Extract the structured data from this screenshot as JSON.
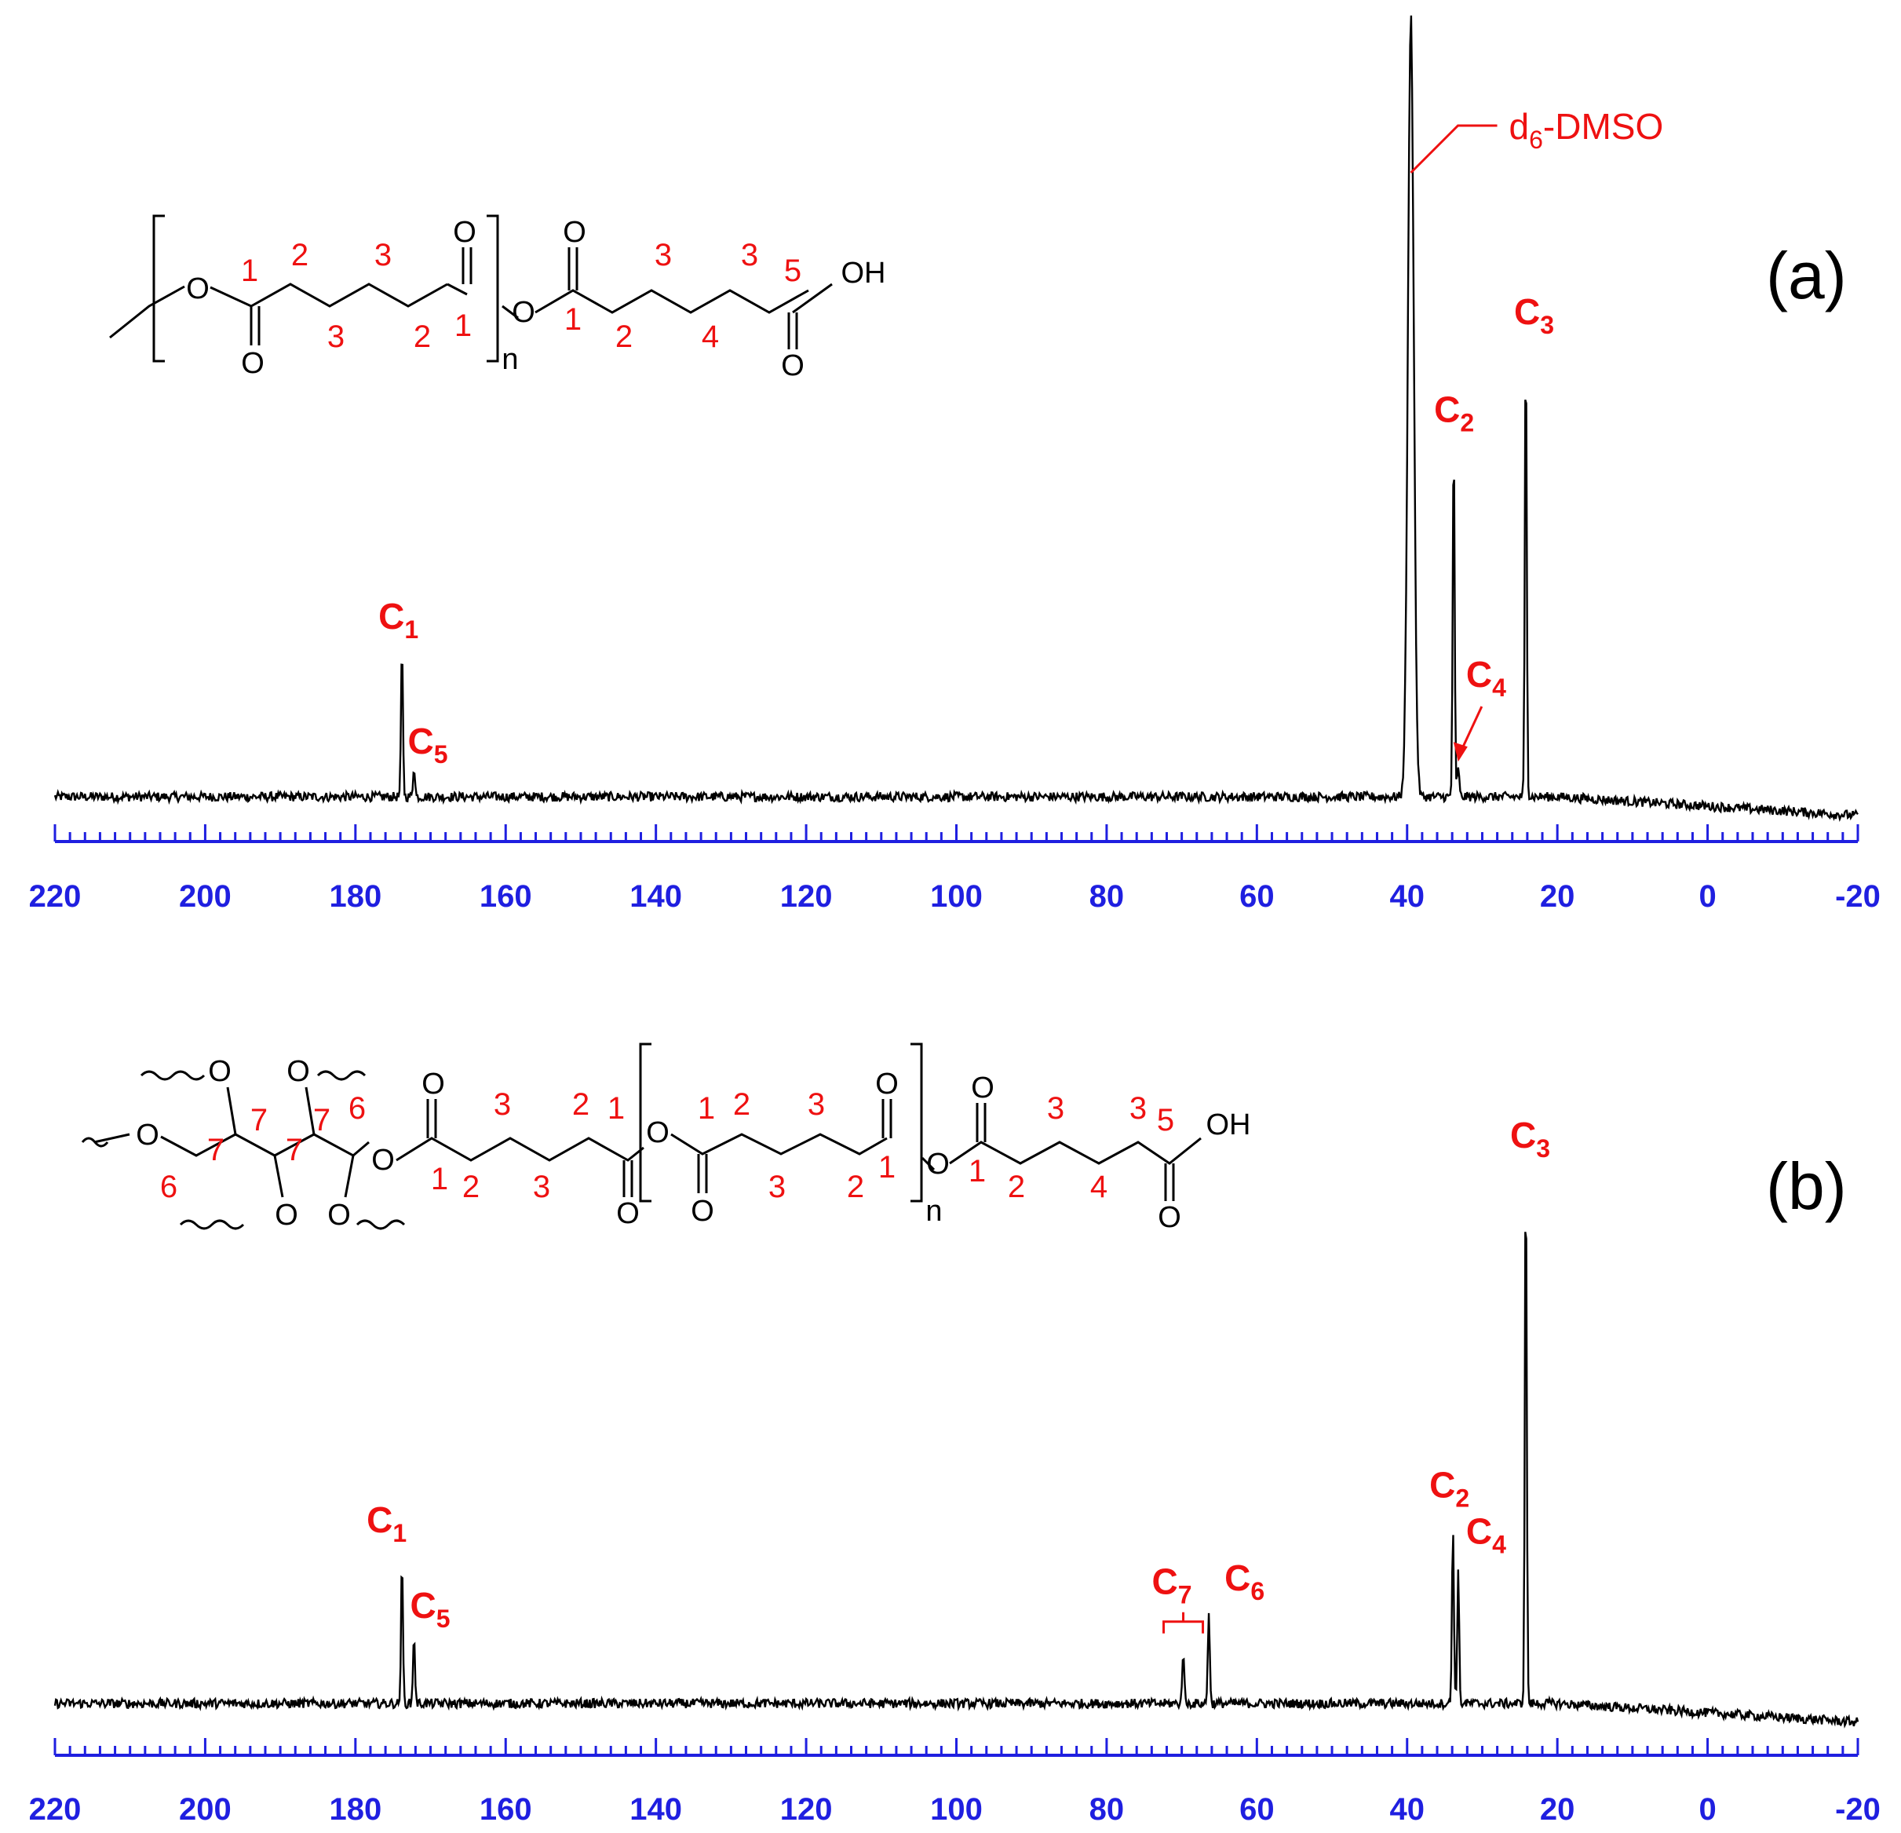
{
  "colors": {
    "axis": "#1f1fe0",
    "spectrum": "#000000",
    "annotation": "#ee1111"
  },
  "chart_data": [
    {
      "type": "line",
      "panel": "(a)",
      "xlim": [
        220,
        -20
      ],
      "x_reversed": true,
      "ticks": [
        220,
        200,
        180,
        160,
        140,
        120,
        100,
        80,
        60,
        40,
        20,
        0,
        -20
      ],
      "peaks": [
        {
          "label": "C",
          "sub": "1",
          "x": 173.8,
          "height": 0.19
        },
        {
          "label": "C",
          "sub": "5",
          "x": 172.2,
          "height": 0.04
        },
        {
          "label": "d",
          "sub": "6",
          "suffix": "-DMSO",
          "x": 39.5,
          "height": 1.0
        },
        {
          "label": "C",
          "sub": "2",
          "x": 33.8,
          "height": 0.46
        },
        {
          "label": "C",
          "sub": "4",
          "x": 33.2,
          "height": 0.04
        },
        {
          "label": "C",
          "sub": "3",
          "x": 24.2,
          "height": 0.58
        }
      ],
      "structure": {
        "atoms": {
          "o_carbonyl": "O",
          "o_ester": "O",
          "oh": "OH",
          "repeat": "n"
        },
        "numbers": [
          "1",
          "2",
          "3",
          "3",
          "2",
          "1",
          "1",
          "2",
          "3",
          "4",
          "3",
          "5"
        ]
      }
    },
    {
      "type": "line",
      "panel": "(b)",
      "xlim": [
        220,
        -20
      ],
      "x_reversed": true,
      "ticks": [
        220,
        200,
        180,
        160,
        140,
        120,
        100,
        80,
        60,
        40,
        20,
        0,
        -20
      ],
      "peaks": [
        {
          "label": "C",
          "sub": "1",
          "x": 173.8,
          "height": 0.18
        },
        {
          "label": "C",
          "sub": "5",
          "x": 172.2,
          "height": 0.09
        },
        {
          "label": "C",
          "sub": "7",
          "x": 69.8,
          "height": 0.07
        },
        {
          "label": "C",
          "sub": "6",
          "x": 66.4,
          "height": 0.12
        },
        {
          "label": "C",
          "sub": "2",
          "x": 33.9,
          "height": 0.23
        },
        {
          "label": "C",
          "sub": "4",
          "x": 33.2,
          "height": 0.17
        },
        {
          "label": "C",
          "sub": "3",
          "x": 24.2,
          "height": 0.69
        }
      ],
      "structure": {
        "atoms": {
          "o_carbonyl": "O",
          "o_ester": "O",
          "oh": "OH",
          "repeat": "n"
        },
        "numbers": [
          "6",
          "7",
          "7",
          "7",
          "7",
          "6",
          "1",
          "2",
          "3",
          "3",
          "2",
          "1",
          "1",
          "2",
          "3",
          "3",
          "2",
          "1",
          "1",
          "2",
          "3",
          "4",
          "3",
          "5"
        ]
      }
    }
  ]
}
